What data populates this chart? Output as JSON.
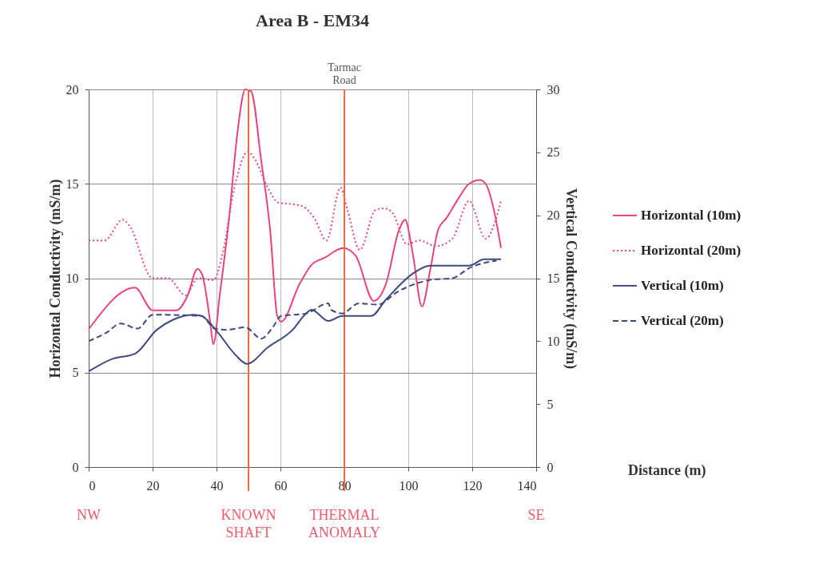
{
  "chart_data": {
    "type": "line",
    "title": "Area B - EM34",
    "xlabel": "Distance  (m)",
    "ylabel": "Horizontal Conductivity (mS/m)",
    "y2label": "Vertical Conductivity (mS/m)",
    "xlim": [
      0,
      140
    ],
    "xticks": [
      0,
      20,
      40,
      60,
      80,
      100,
      120,
      140
    ],
    "ylim": [
      0,
      20
    ],
    "yticks": [
      0,
      5,
      10,
      15,
      20
    ],
    "y2lim": [
      0,
      30
    ],
    "y2ticks": [
      0,
      5,
      10,
      15,
      20,
      25,
      30
    ],
    "grid": true,
    "legend": "right",
    "series": [
      {
        "name": "Horizontal (10m)",
        "color": "#e8457a",
        "line_style": "solid",
        "x": [
          0,
          14.5,
          20,
          27.5,
          31,
          34,
          35.5,
          38,
          39,
          41,
          44,
          46.4,
          49,
          50.8,
          54,
          56.8,
          59,
          60.2,
          66,
          69.7,
          74,
          79.6,
          83.5,
          89.2,
          93,
          97,
          99,
          101.3,
          104.3,
          106.8,
          109.4,
          112,
          115.6,
          119,
          122.4,
          124.2,
          126.8,
          129
        ],
        "values": [
          7.3,
          9.5,
          8.3,
          8.3,
          9.1,
          10.5,
          10.2,
          7.7,
          6.5,
          9.1,
          13.3,
          17.5,
          20,
          19.9,
          16.2,
          12.5,
          8,
          7.7,
          9.7,
          10.7,
          11.1,
          11.6,
          11.2,
          8.8,
          9.7,
          12.5,
          13.1,
          11.4,
          8.5,
          10.4,
          12.6,
          13.2,
          14.2,
          15,
          15.2,
          15,
          13.6,
          11.6
        ]
      },
      {
        "name": "Horizontal (20m)",
        "color": "#e8457a",
        "line_style": "dotted",
        "x": [
          0,
          5,
          10.6,
          12.7,
          20,
          24.8,
          30.3,
          34.2,
          39,
          42,
          45.6,
          49.8,
          52,
          56,
          59.4,
          64.6,
          67,
          70.5,
          74.4,
          78.8,
          81,
          84.8,
          89.7,
          92.3,
          94.9,
          99.6,
          103.4,
          108.6,
          113.8,
          119,
          124.2,
          129
        ],
        "values": [
          12,
          12,
          13.1,
          12.8,
          10,
          10,
          9.1,
          10,
          9.9,
          11.4,
          14.8,
          16.7,
          16.3,
          14.8,
          14,
          13.9,
          13.8,
          13.2,
          12,
          14.8,
          13.6,
          11.5,
          13.6,
          13.7,
          13.5,
          11.8,
          12,
          11.7,
          12.1,
          14.1,
          12.1,
          14.1
        ]
      },
      {
        "name": "Vertical (10m)",
        "color": "#3d4a80",
        "line_style": "solid",
        "axis": "y2",
        "x": [
          0,
          7.5,
          14.5,
          21.3,
          26.4,
          32.7,
          35.3,
          40.4,
          45.6,
          49.5,
          56,
          63.8,
          68,
          69.7,
          75,
          79.3,
          88.4,
          93,
          101.6,
          106.8,
          119,
          123.7,
          129
        ],
        "values": [
          7.6,
          8.6,
          9,
          10.9,
          11.7,
          12.1,
          12,
          10.7,
          9,
          8.2,
          9.5,
          10.9,
          12.2,
          12.5,
          11.6,
          12,
          12,
          13.3,
          15.4,
          16,
          16,
          16.5,
          16.5
        ]
      },
      {
        "name": "Vertical (20m)",
        "color": "#3d4a80",
        "line_style": "dashed",
        "axis": "y2",
        "x": [
          0,
          5.7,
          10,
          15.3,
          20,
          35.3,
          39.4,
          43,
          49,
          54,
          57.6,
          60.2,
          68,
          75,
          75.8,
          79.3,
          84.5,
          90.5,
          96.5,
          101.6,
          107.8,
          113.8,
          119,
          127.6
        ],
        "values": [
          10,
          10.7,
          11.4,
          11,
          12.1,
          12,
          11,
          10.9,
          11.1,
          10.2,
          11.1,
          12,
          12.2,
          13,
          12.5,
          12.2,
          13,
          12.9,
          13.9,
          14.5,
          14.9,
          15,
          15.8,
          16.4
        ]
      }
    ],
    "ref_lines": [
      {
        "axis": "x",
        "value": 50,
        "label": "KNOWN SHAFT",
        "color": "#f26b38"
      },
      {
        "axis": "x",
        "value": 80,
        "label": "THERMAL ANOMALY",
        "color": "#f26b38"
      }
    ],
    "annotations": [
      "Tarmac Road",
      "NW",
      "SE"
    ]
  }
}
